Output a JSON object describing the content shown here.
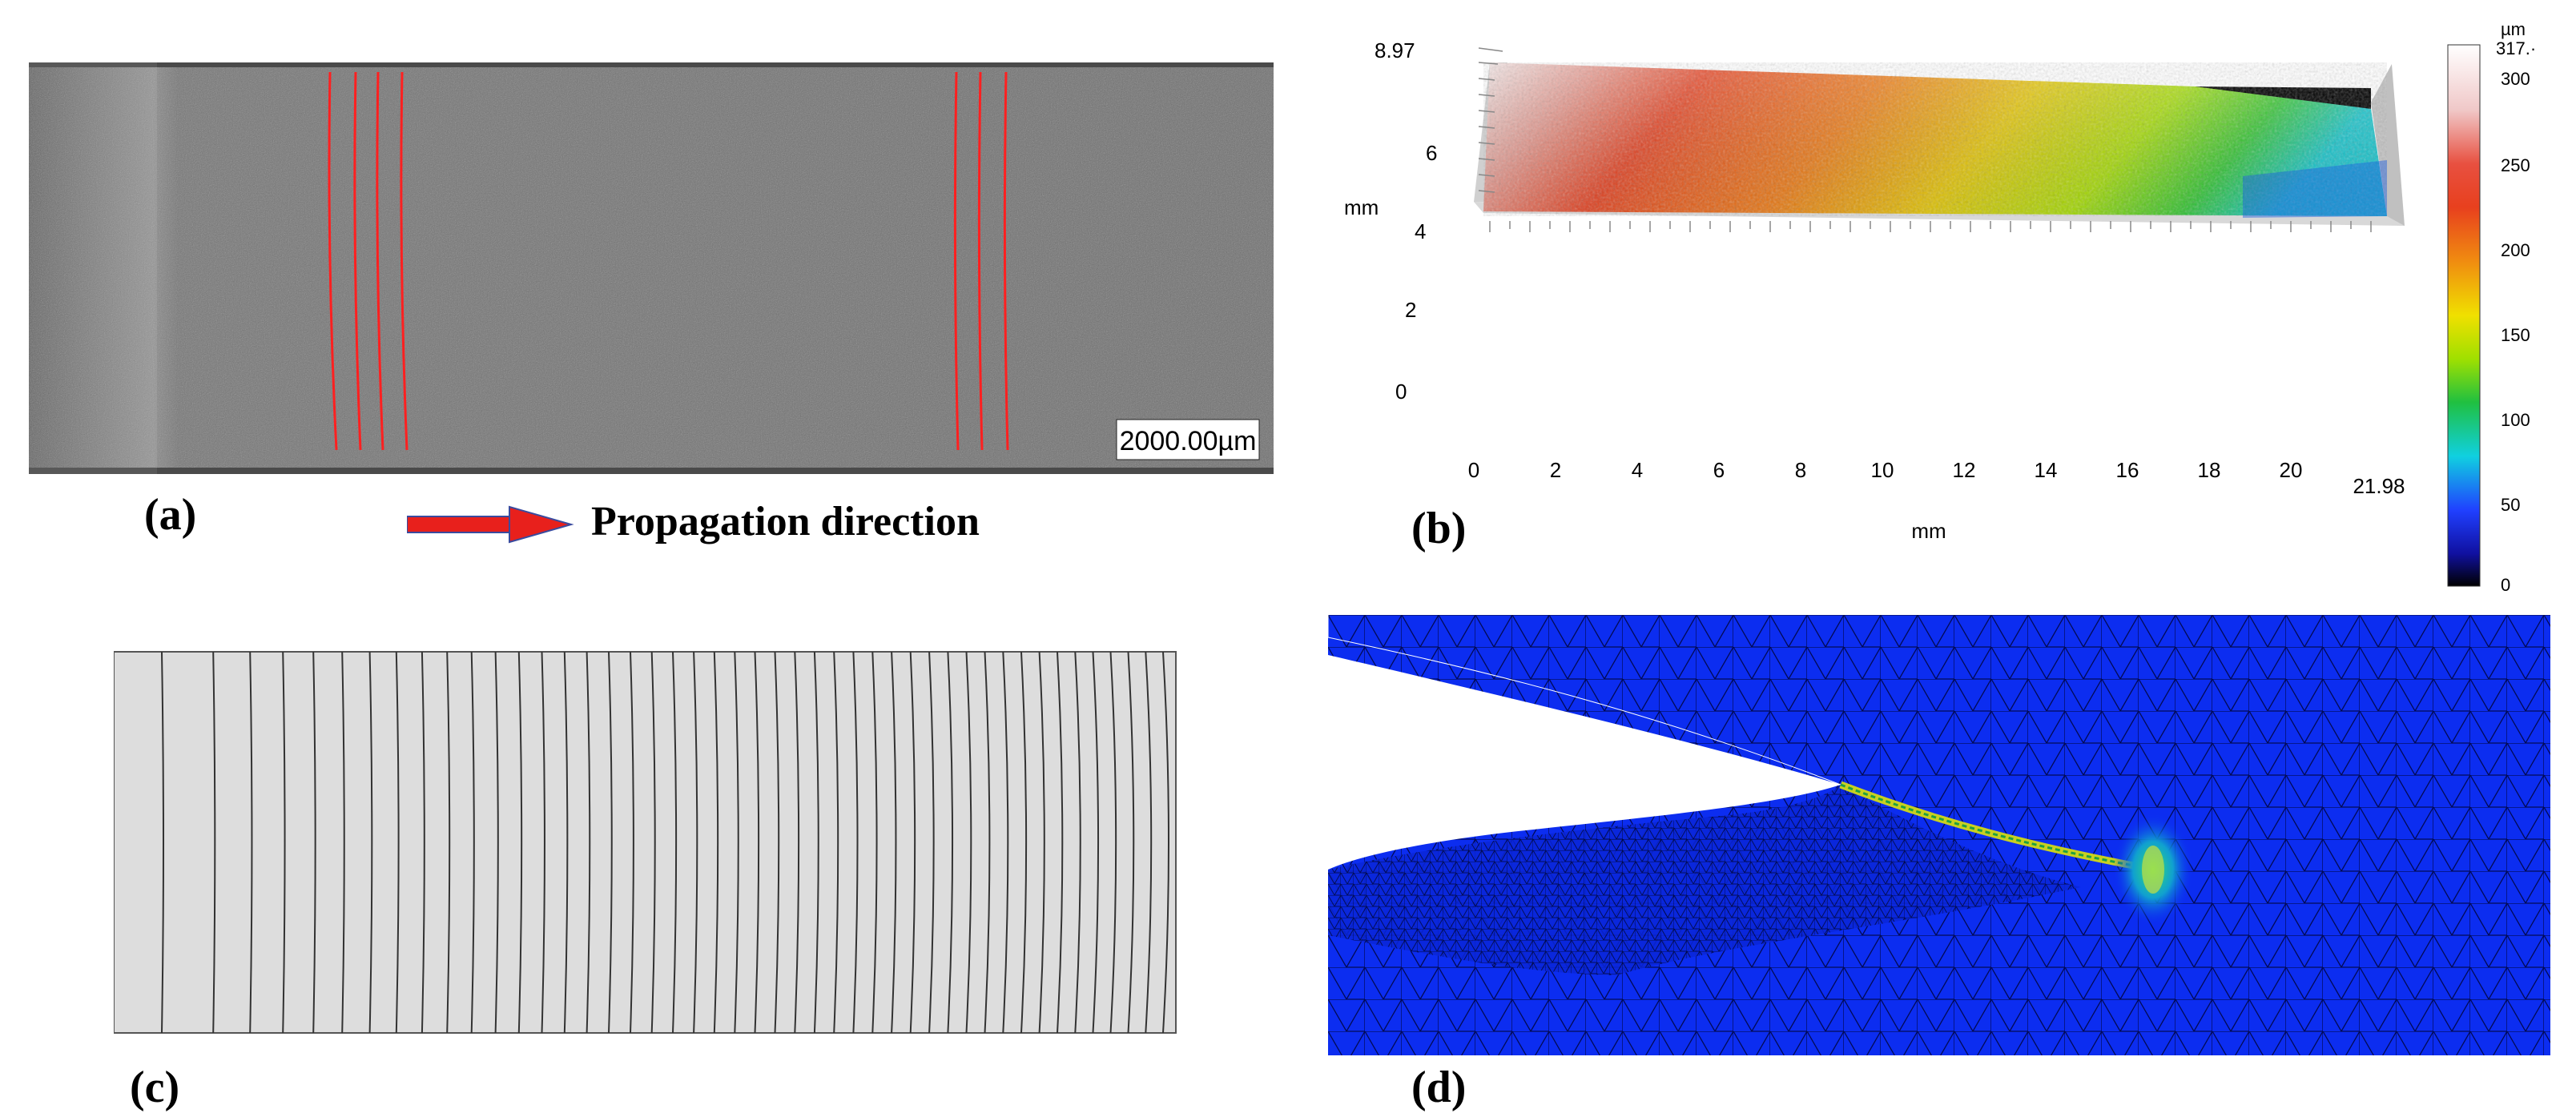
{
  "panel_a": {
    "label": "(a)",
    "scale_bar": "2000.00µm",
    "arrow_text": "Propagation direction",
    "line_color": "#ff2020",
    "arrow_color": "#e8201c"
  },
  "panel_b": {
    "label": "(b)",
    "y_axis_title": "mm",
    "x_axis_title": "mm",
    "y_top_value": "8.97",
    "x_end_value": "21.98",
    "y_ticks": [
      "0",
      "2",
      "4",
      "6"
    ],
    "x_ticks": [
      "0",
      "2",
      "4",
      "6",
      "8",
      "10",
      "12",
      "14",
      "16",
      "18",
      "20"
    ],
    "colorbar_unit": "µm",
    "colorbar_max": "317.·",
    "colorbar_ticks": [
      "300",
      "250",
      "200",
      "150",
      "100",
      "50",
      "0"
    ]
  },
  "panel_c": {
    "label": "(c)"
  },
  "panel_d": {
    "label": "(d)",
    "mesh_color": "#0a28e6"
  }
}
